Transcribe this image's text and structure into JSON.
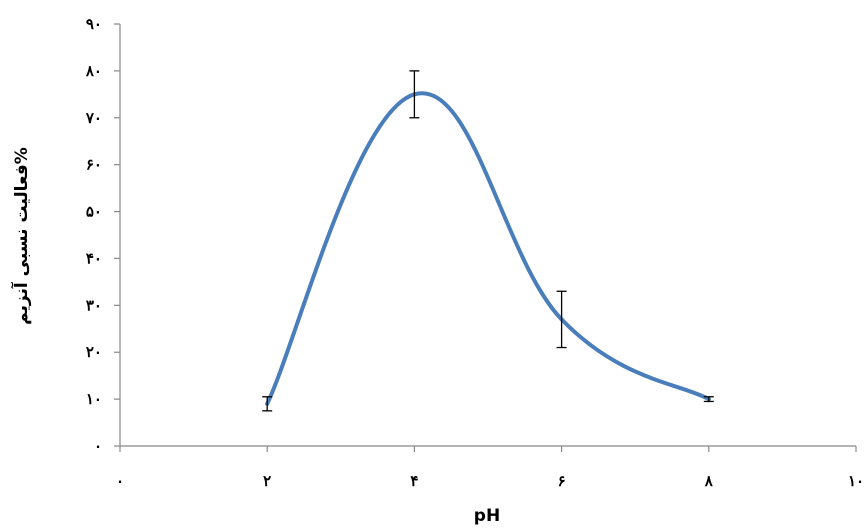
{
  "chart_data": {
    "type": "line",
    "title": "",
    "xlabel": "pH",
    "ylabel": "فعالیت نسبی آنزیم%",
    "xlim": [
      0,
      10
    ],
    "ylim": [
      0,
      90
    ],
    "x_ticks": [
      0,
      2,
      4,
      6,
      8,
      10
    ],
    "x_tick_labels": [
      "۰",
      "۲",
      "۴",
      "۶",
      "۸",
      "۱۰"
    ],
    "y_ticks": [
      0,
      10,
      20,
      30,
      40,
      50,
      60,
      70,
      80,
      90
    ],
    "y_tick_labels": [
      "۰",
      "۱۰",
      "۲۰",
      "۳۰",
      "۴۰",
      "۵۰",
      "۶۰",
      "۷۰",
      "۸۰",
      "۹۰"
    ],
    "grid": false,
    "legend": "none",
    "line_color": "#4a7ebb",
    "series": [
      {
        "x": [
          2,
          4,
          6,
          8
        ],
        "values": [
          9,
          75,
          27,
          10
        ],
        "error": [
          1.5,
          5,
          6,
          0.5
        ]
      }
    ]
  }
}
